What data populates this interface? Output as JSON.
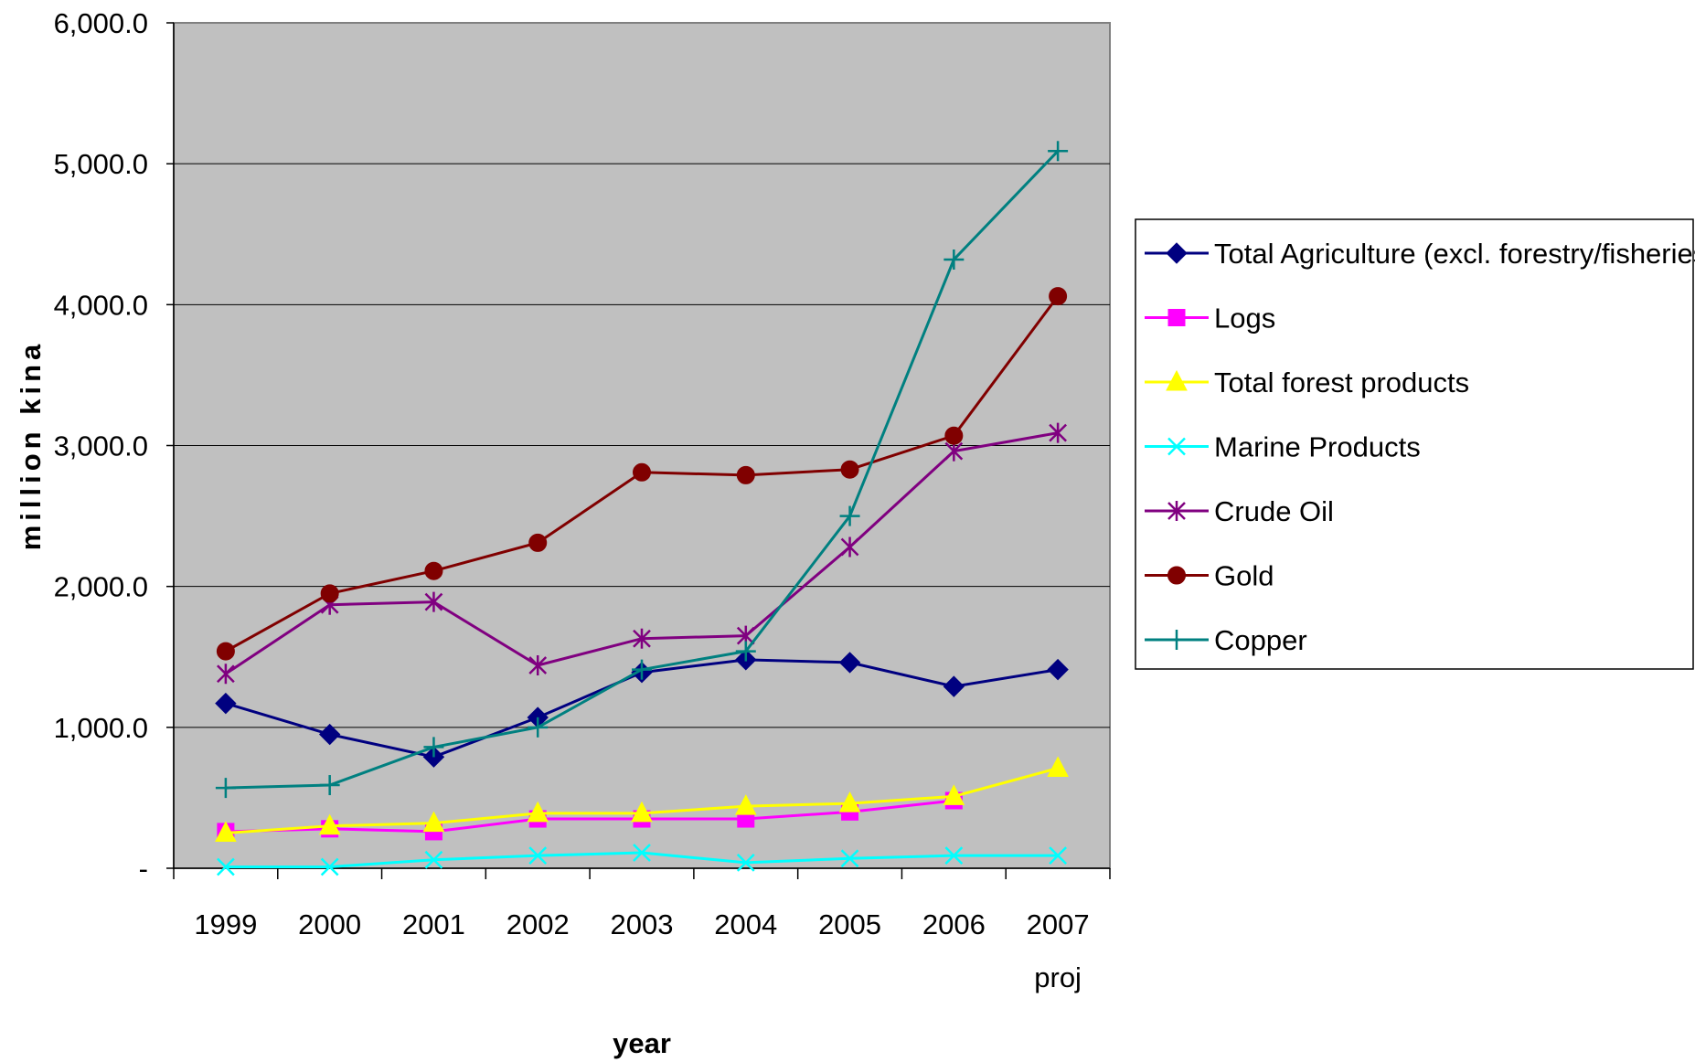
{
  "chart_data": {
    "type": "line",
    "title": "",
    "xlabel": "year",
    "ylabel": "million kina",
    "categories": [
      "1999",
      "2000",
      "2001",
      "2002",
      "2003",
      "2004",
      "2005",
      "2006",
      "2007"
    ],
    "category_sublabels": [
      "",
      "",
      "",
      "",
      "",
      "",
      "",
      "",
      "proj"
    ],
    "ylim": [
      0,
      6000
    ],
    "yticks": [
      0,
      1000,
      2000,
      3000,
      4000,
      5000,
      6000
    ],
    "ytick_labels": [
      "-",
      "1,000.0",
      "2,000.0",
      "3,000.0",
      "4,000.0",
      "5,000.0",
      "6,000.0"
    ],
    "grid": true,
    "plot_background": "#c0c0c0",
    "legend_position": "right",
    "series": [
      {
        "name": "Total Agriculture (excl. forestry/fisheries)",
        "color": "#000080",
        "marker": "diamond",
        "values": [
          1170,
          950,
          790,
          1070,
          1390,
          1480,
          1460,
          1290,
          1410
        ]
      },
      {
        "name": "Logs",
        "color": "#ff00ff",
        "marker": "square",
        "values": [
          260,
          280,
          260,
          350,
          350,
          350,
          400,
          480,
          null
        ]
      },
      {
        "name": "Total forest products",
        "color": "#ffff00",
        "marker": "triangle",
        "values": [
          250,
          300,
          320,
          390,
          390,
          440,
          460,
          510,
          710
        ]
      },
      {
        "name": "Marine Products",
        "color": "#00ffff",
        "marker": "x",
        "values": [
          10,
          10,
          60,
          90,
          110,
          40,
          70,
          90,
          90
        ]
      },
      {
        "name": "Crude Oil",
        "color": "#800080",
        "marker": "star",
        "values": [
          1380,
          1870,
          1890,
          1440,
          1630,
          1650,
          2280,
          2960,
          3090
        ]
      },
      {
        "name": "Gold",
        "color": "#800000",
        "marker": "circle",
        "values": [
          1540,
          1950,
          2110,
          2310,
          2810,
          2790,
          2830,
          3070,
          4060
        ]
      },
      {
        "name": "Copper",
        "color": "#008080",
        "marker": "plus",
        "values": [
          570,
          590,
          860,
          1000,
          1410,
          1540,
          2500,
          4320,
          5090
        ]
      }
    ]
  }
}
